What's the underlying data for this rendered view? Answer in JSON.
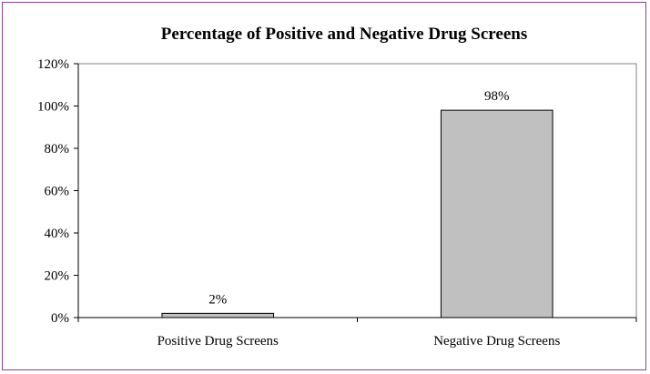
{
  "chart_data": {
    "type": "bar",
    "title": "Percentage of Positive and Negative Drug Screens",
    "categories": [
      "Positive Drug Screens",
      "Negative Drug Screens"
    ],
    "values": [
      2,
      98
    ],
    "data_labels": [
      "2%",
      "98%"
    ],
    "y_ticks": [
      0,
      20,
      40,
      60,
      80,
      100,
      120
    ],
    "y_tick_labels": [
      "0%",
      "20%",
      "40%",
      "60%",
      "80%",
      "100%",
      "120%"
    ],
    "ylim": [
      0,
      120
    ],
    "grid": false,
    "legend": "none",
    "colors": {
      "bar_fill": "#c0c0c0",
      "bar_stroke": "#000000",
      "frame_border": "#8b3f8f",
      "plot_border": "#808080"
    }
  }
}
